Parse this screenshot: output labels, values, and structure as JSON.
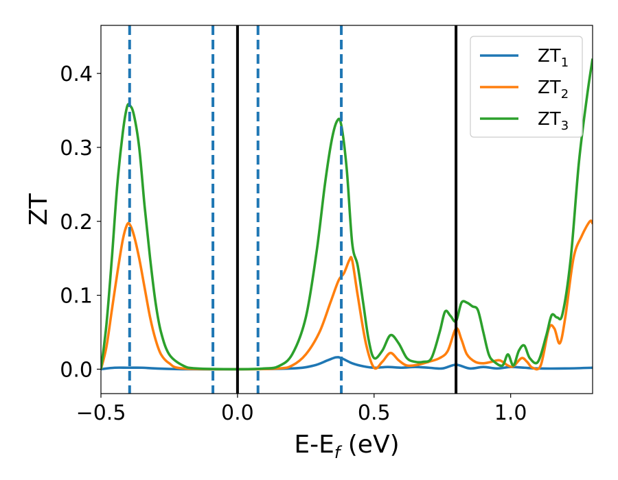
{
  "chart_data": {
    "type": "line",
    "xlabel": "E-E",
    "xlabel_sub": "f",
    "xlabel_unit": " (eV)",
    "ylabel": "ZT",
    "xlim": [
      -0.5,
      1.3
    ],
    "ylim": [
      -0.033,
      0.465
    ],
    "xticks": [
      -0.5,
      0.0,
      0.5,
      1.0
    ],
    "xtick_labels": [
      "−0.5",
      "0.0",
      "0.5",
      "1.0"
    ],
    "yticks": [
      0.0,
      0.1,
      0.2,
      0.3,
      0.4
    ],
    "ytick_labels": [
      "0.0",
      "0.1",
      "0.2",
      "0.3",
      "0.4"
    ],
    "grid": false,
    "legend_position": "top-right",
    "vlines_dashed": [
      -0.395,
      -0.09,
      0.075,
      0.38
    ],
    "vlines_solid": [
      0.0,
      0.8
    ],
    "vline_dashed_color": "#1f77b4",
    "vline_solid_color": "#000000",
    "series": [
      {
        "name": "ZT",
        "name_sub": "1",
        "color": "#1f77b4",
        "points": [
          [
            -0.5,
            0.0
          ],
          [
            -0.45,
            0.002
          ],
          [
            -0.4,
            0.002
          ],
          [
            -0.35,
            0.002
          ],
          [
            -0.3,
            0.001
          ],
          [
            -0.2,
            0.0
          ],
          [
            0.0,
            0.0
          ],
          [
            0.2,
            0.001
          ],
          [
            0.28,
            0.005
          ],
          [
            0.33,
            0.012
          ],
          [
            0.36,
            0.016
          ],
          [
            0.38,
            0.015
          ],
          [
            0.42,
            0.008
          ],
          [
            0.46,
            0.004
          ],
          [
            0.5,
            0.002
          ],
          [
            0.55,
            0.003
          ],
          [
            0.6,
            0.002
          ],
          [
            0.65,
            0.003
          ],
          [
            0.7,
            0.002
          ],
          [
            0.75,
            0.001
          ],
          [
            0.8,
            0.006
          ],
          [
            0.85,
            0.001
          ],
          [
            0.9,
            0.003
          ],
          [
            0.95,
            0.001
          ],
          [
            1.0,
            0.003
          ],
          [
            1.05,
            0.002
          ],
          [
            1.1,
            0.001
          ],
          [
            1.2,
            0.001
          ],
          [
            1.3,
            0.002
          ]
        ]
      },
      {
        "name": "ZT",
        "name_sub": "2",
        "color": "#ff7f0e",
        "points": [
          [
            -0.5,
            0.0
          ],
          [
            -0.48,
            0.03
          ],
          [
            -0.46,
            0.08
          ],
          [
            -0.44,
            0.13
          ],
          [
            -0.42,
            0.175
          ],
          [
            -0.405,
            0.195
          ],
          [
            -0.395,
            0.196
          ],
          [
            -0.38,
            0.182
          ],
          [
            -0.36,
            0.15
          ],
          [
            -0.34,
            0.11
          ],
          [
            -0.32,
            0.07
          ],
          [
            -0.3,
            0.04
          ],
          [
            -0.28,
            0.02
          ],
          [
            -0.25,
            0.008
          ],
          [
            -0.2,
            0.001
          ],
          [
            0.0,
            0.0
          ],
          [
            0.15,
            0.001
          ],
          [
            0.2,
            0.005
          ],
          [
            0.25,
            0.02
          ],
          [
            0.3,
            0.05
          ],
          [
            0.34,
            0.09
          ],
          [
            0.37,
            0.12
          ],
          [
            0.39,
            0.13
          ],
          [
            0.41,
            0.148
          ],
          [
            0.42,
            0.147
          ],
          [
            0.44,
            0.1
          ],
          [
            0.47,
            0.035
          ],
          [
            0.5,
            0.002
          ],
          [
            0.53,
            0.01
          ],
          [
            0.56,
            0.022
          ],
          [
            0.59,
            0.012
          ],
          [
            0.62,
            0.005
          ],
          [
            0.66,
            0.006
          ],
          [
            0.7,
            0.01
          ],
          [
            0.74,
            0.015
          ],
          [
            0.77,
            0.025
          ],
          [
            0.8,
            0.055
          ],
          [
            0.82,
            0.04
          ],
          [
            0.84,
            0.02
          ],
          [
            0.87,
            0.01
          ],
          [
            0.9,
            0.008
          ],
          [
            0.93,
            0.01
          ],
          [
            0.96,
            0.012
          ],
          [
            0.99,
            0.005
          ],
          [
            1.01,
            0.004
          ],
          [
            1.04,
            0.015
          ],
          [
            1.06,
            0.01
          ],
          [
            1.08,
            0.002
          ],
          [
            1.11,
            0.005
          ],
          [
            1.14,
            0.055
          ],
          [
            1.16,
            0.055
          ],
          [
            1.18,
            0.035
          ],
          [
            1.2,
            0.07
          ],
          [
            1.23,
            0.15
          ],
          [
            1.26,
            0.18
          ],
          [
            1.29,
            0.2
          ],
          [
            1.3,
            0.197
          ]
        ]
      },
      {
        "name": "ZT",
        "name_sub": "3",
        "color": "#2ca02c",
        "points": [
          [
            -0.5,
            0.0
          ],
          [
            -0.48,
            0.06
          ],
          [
            -0.46,
            0.15
          ],
          [
            -0.44,
            0.25
          ],
          [
            -0.42,
            0.32
          ],
          [
            -0.405,
            0.354
          ],
          [
            -0.395,
            0.357
          ],
          [
            -0.38,
            0.345
          ],
          [
            -0.36,
            0.3
          ],
          [
            -0.34,
            0.22
          ],
          [
            -0.32,
            0.15
          ],
          [
            -0.3,
            0.09
          ],
          [
            -0.28,
            0.05
          ],
          [
            -0.25,
            0.02
          ],
          [
            -0.2,
            0.005
          ],
          [
            -0.15,
            0.001
          ],
          [
            0.0,
            0.0
          ],
          [
            0.1,
            0.001
          ],
          [
            0.15,
            0.004
          ],
          [
            0.2,
            0.02
          ],
          [
            0.25,
            0.07
          ],
          [
            0.29,
            0.16
          ],
          [
            0.32,
            0.25
          ],
          [
            0.345,
            0.31
          ],
          [
            0.365,
            0.336
          ],
          [
            0.38,
            0.33
          ],
          [
            0.4,
            0.27
          ],
          [
            0.42,
            0.17
          ],
          [
            0.44,
            0.14
          ],
          [
            0.46,
            0.09
          ],
          [
            0.48,
            0.04
          ],
          [
            0.5,
            0.015
          ],
          [
            0.53,
            0.025
          ],
          [
            0.56,
            0.046
          ],
          [
            0.59,
            0.035
          ],
          [
            0.62,
            0.015
          ],
          [
            0.65,
            0.01
          ],
          [
            0.68,
            0.01
          ],
          [
            0.71,
            0.015
          ],
          [
            0.74,
            0.05
          ],
          [
            0.76,
            0.078
          ],
          [
            0.78,
            0.072
          ],
          [
            0.8,
            0.065
          ],
          [
            0.82,
            0.09
          ],
          [
            0.84,
            0.09
          ],
          [
            0.86,
            0.085
          ],
          [
            0.88,
            0.08
          ],
          [
            0.9,
            0.05
          ],
          [
            0.92,
            0.02
          ],
          [
            0.94,
            0.01
          ],
          [
            0.97,
            0.005
          ],
          [
            0.99,
            0.02
          ],
          [
            1.01,
            0.005
          ],
          [
            1.03,
            0.025
          ],
          [
            1.05,
            0.032
          ],
          [
            1.07,
            0.015
          ],
          [
            1.1,
            0.01
          ],
          [
            1.13,
            0.045
          ],
          [
            1.15,
            0.073
          ],
          [
            1.17,
            0.07
          ],
          [
            1.19,
            0.075
          ],
          [
            1.22,
            0.15
          ],
          [
            1.25,
            0.28
          ],
          [
            1.28,
            0.37
          ],
          [
            1.3,
            0.42
          ]
        ]
      }
    ]
  }
}
